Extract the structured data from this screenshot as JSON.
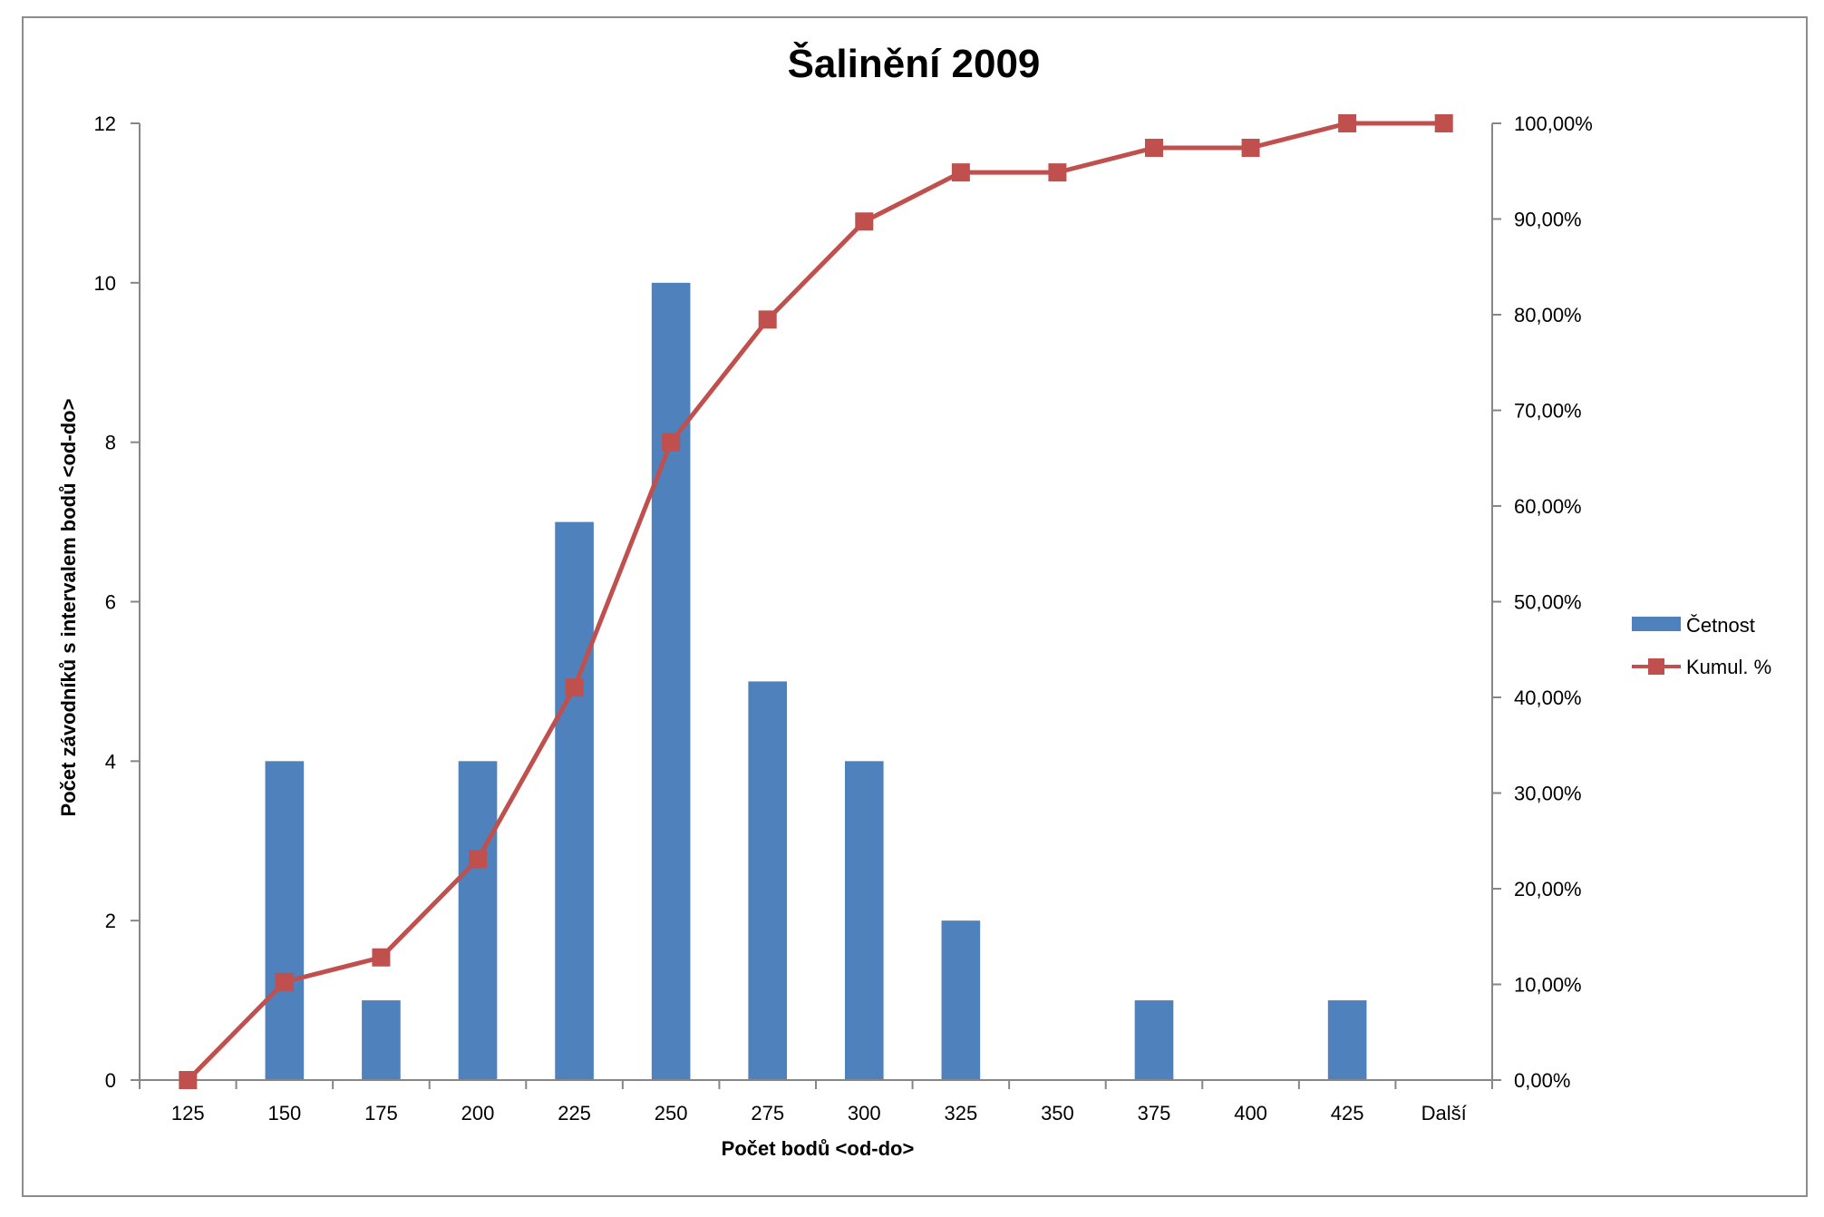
{
  "chart_data": {
    "type": "bar",
    "title": "Šalinění 2009",
    "xlabel": "Počet bodů <od-do>",
    "ylabel": "Počet závodníků s intervalem bodů <od-do>",
    "categories": [
      "125",
      "150",
      "175",
      "200",
      "225",
      "250",
      "275",
      "300",
      "325",
      "350",
      "375",
      "400",
      "425",
      "Další"
    ],
    "series": [
      {
        "name": "Četnost",
        "type": "bar",
        "axis": "left",
        "color": "#4f81bd",
        "values": [
          0,
          4,
          1,
          4,
          7,
          10,
          5,
          4,
          2,
          0,
          1,
          0,
          1,
          0
        ]
      },
      {
        "name": "Kumul. %",
        "type": "line",
        "axis": "right",
        "color": "#c0504d",
        "marker": "square",
        "values": [
          0.0,
          10.26,
          12.82,
          23.08,
          41.03,
          66.67,
          79.49,
          89.74,
          94.87,
          94.87,
          97.44,
          97.44,
          100.0,
          100.0
        ]
      }
    ],
    "y_left": {
      "lim": [
        0,
        12
      ],
      "ticks": [
        0,
        2,
        4,
        6,
        8,
        10,
        12
      ],
      "tick_labels": [
        "0",
        "2",
        "4",
        "6",
        "8",
        "10",
        "12"
      ]
    },
    "y_right": {
      "lim": [
        0,
        100
      ],
      "ticks": [
        0,
        10,
        20,
        30,
        40,
        50,
        60,
        70,
        80,
        90,
        100
      ],
      "tick_labels": [
        "0,00%",
        "10,00%",
        "20,00%",
        "30,00%",
        "40,00%",
        "50,00%",
        "60,00%",
        "70,00%",
        "80,00%",
        "90,00%",
        "100,00%"
      ]
    },
    "grid": false,
    "legend_position": "right"
  }
}
